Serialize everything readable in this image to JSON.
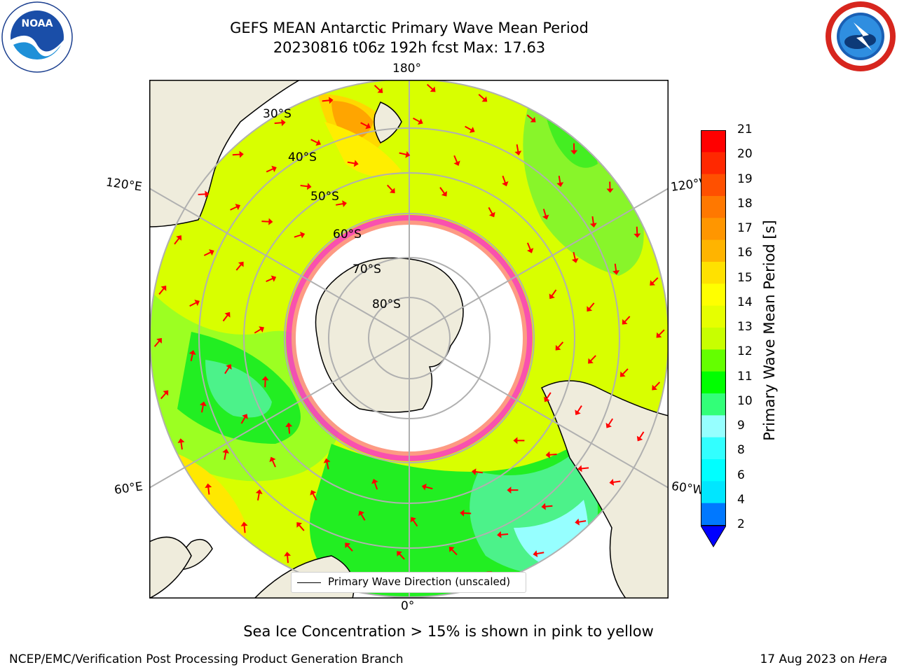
{
  "header": {
    "title_line1": "GEFS MEAN Antarctic Primary Wave Mean Period",
    "title_line2": "20230816 t06z 192h fcst   Max: 17.63"
  },
  "logos": {
    "left": "noaa-logo",
    "right": "national-weather-service-logo"
  },
  "map": {
    "projection": "south-polar-stereographic",
    "longitude_labels": {
      "top": "180°",
      "bottom": "0°",
      "left_upper": "120°E",
      "left_lower": "60°E",
      "right_upper": "120°W",
      "right_lower": "60°W"
    },
    "latitude_labels": [
      "30°S",
      "40°S",
      "50°S",
      "60°S",
      "70°S",
      "80°S"
    ],
    "colors": {
      "land": "#efecdc",
      "ocean_no_data": "#ffffff",
      "gridlines": "#b0b0b0",
      "arrows": "#ff0000",
      "sea_ice": "#ff33cc"
    }
  },
  "colorbar": {
    "label": "Primary Wave Mean Period [s]",
    "ticks": [
      "21",
      "20",
      "19",
      "18",
      "17",
      "16",
      "15",
      "14",
      "13",
      "12",
      "11",
      "10",
      "9",
      "8",
      "6",
      "4",
      "2"
    ],
    "bin_colors": [
      "#ff0000",
      "#ff2800",
      "#ff5000",
      "#ff7800",
      "#ff9600",
      "#ffb400",
      "#ffe100",
      "#ffff00",
      "#e6ff00",
      "#c8ff00",
      "#64ff00",
      "#00ff00",
      "#32ff78",
      "#96ffff",
      "#32ffff",
      "#00ffff",
      "#00e6ff",
      "#0078ff"
    ],
    "under_color": "#0000ff"
  },
  "legend": {
    "label": "Primary Wave Direction (unscaled)"
  },
  "notes": {
    "sea_ice": "Sea Ice Concentration > 15% is shown in pink to yellow"
  },
  "footer": {
    "left": "NCEP/EMC/Verification Post Processing Product Generation Branch",
    "right_date": "17 Aug 2023 on ",
    "right_machine": "Hera"
  }
}
